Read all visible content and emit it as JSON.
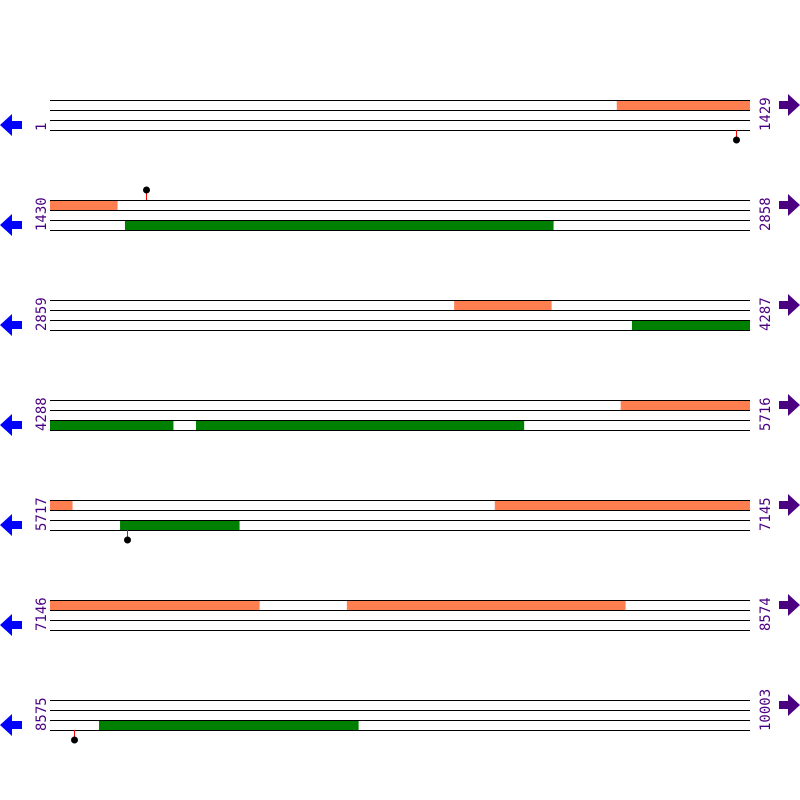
{
  "colors": {
    "forward_feature": "#ff7f50",
    "reverse_feature": "#008000",
    "line": "#000000",
    "label": "#4b0082",
    "left_arrow": "#0000ff",
    "right_arrow": "#4b0082",
    "marker_stem": "#ff0000",
    "marker_dot": "#000000"
  },
  "icons": {
    "left": "arrow-left-icon",
    "right": "arrow-right-icon"
  },
  "rows": [
    {
      "start": "1",
      "end": "1429",
      "forward": [
        [
          1158,
          1429
        ]
      ],
      "reverse": [],
      "markers": [
        {
          "pos": 1401,
          "side": "below"
        }
      ]
    },
    {
      "start": "1430",
      "end": "2858",
      "forward": [
        [
          1430,
          1567
        ]
      ],
      "reverse": [
        [
          1583,
          2457
        ]
      ],
      "markers": [
        {
          "pos": 1626,
          "side": "above"
        }
      ]
    },
    {
      "start": "2859",
      "end": "4287",
      "forward": [
        [
          3684,
          3882
        ]
      ],
      "reverse": [
        [
          4047,
          4287
        ]
      ],
      "markers": []
    },
    {
      "start": "4288",
      "end": "5716",
      "forward": [
        [
          5453,
          5716
        ]
      ],
      "reverse": [
        [
          4288,
          4539
        ],
        [
          4586,
          5255
        ]
      ],
      "markers": []
    },
    {
      "start": "5717",
      "end": "7145",
      "forward": [
        [
          5717,
          5762
        ],
        [
          6625,
          7145
        ]
      ],
      "reverse": [
        [
          5860,
          6103
        ]
      ],
      "markers": [
        {
          "pos": 5874,
          "side": "below"
        }
      ]
    },
    {
      "start": "7146",
      "end": "8574",
      "forward": [
        [
          7146,
          7573
        ],
        [
          7752,
          8320
        ]
      ],
      "reverse": [],
      "markers": []
    },
    {
      "start": "8575",
      "end": "10003",
      "forward": [],
      "reverse": [
        [
          8675,
          9204
        ]
      ],
      "markers": [
        {
          "pos": 8624,
          "side": "below"
        }
      ]
    }
  ]
}
